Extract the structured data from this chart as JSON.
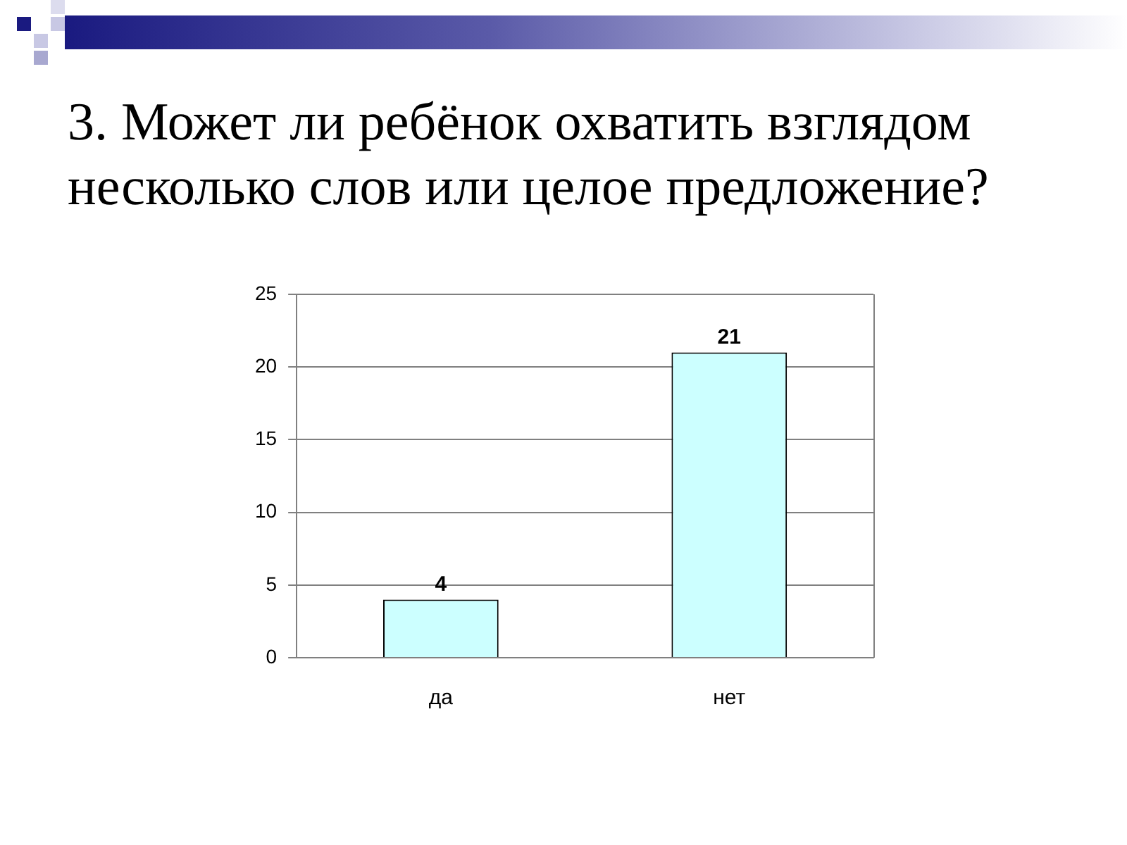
{
  "chart_data": {
    "type": "bar",
    "title": "3. Может ли ребёнок охватить взглядом несколько слов или целое предложение?",
    "categories": [
      "да",
      "нет"
    ],
    "values": [
      4,
      21
    ],
    "color": "#ccffff",
    "ylim": [
      0,
      25
    ],
    "yticks": [
      0,
      5,
      10,
      15,
      20,
      25
    ],
    "grid": "y",
    "data_labels": true,
    "legend": false
  }
}
